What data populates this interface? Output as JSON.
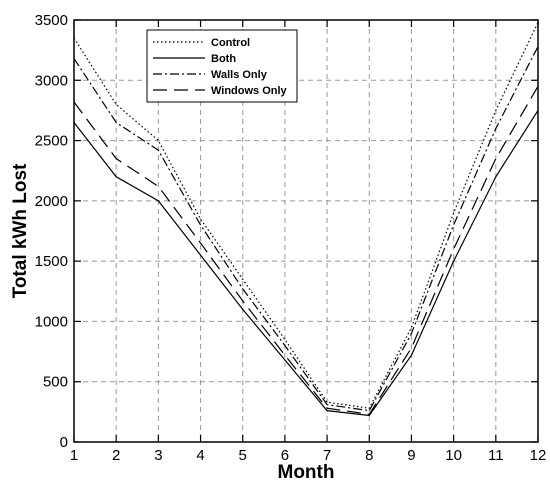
{
  "chart_data": {
    "type": "line",
    "title": "",
    "xlabel": "Month",
    "ylabel": "Total kWh Lost",
    "xlim": [
      1,
      12
    ],
    "ylim": [
      0,
      3500
    ],
    "x": [
      1,
      2,
      3,
      4,
      5,
      6,
      7,
      8,
      9,
      10,
      11,
      12
    ],
    "xticks": [
      "1",
      "2",
      "3",
      "4",
      "5",
      "6",
      "7",
      "8",
      "9",
      "10",
      "11",
      "12"
    ],
    "yticks": [
      "0",
      "500",
      "1000",
      "1500",
      "2000",
      "2500",
      "3000",
      "3500"
    ],
    "grid": true,
    "legend_position": "top-left",
    "series": [
      {
        "name": "Control",
        "dash": "dotted",
        "values": [
          3350,
          2800,
          2500,
          1850,
          1350,
          850,
          330,
          280,
          950,
          1900,
          2750,
          3480
        ]
      },
      {
        "name": "Both",
        "dash": "solid",
        "values": [
          2650,
          2200,
          2000,
          1550,
          1100,
          680,
          260,
          220,
          720,
          1500,
          2200,
          2750
        ]
      },
      {
        "name": "Walls Only",
        "dash": "dashdot",
        "values": [
          3180,
          2650,
          2420,
          1800,
          1270,
          800,
          310,
          260,
          900,
          1800,
          2600,
          3280
        ]
      },
      {
        "name": "Windows Only",
        "dash": "dashed",
        "values": [
          2820,
          2350,
          2120,
          1650,
          1170,
          720,
          280,
          230,
          780,
          1600,
          2350,
          2950
        ]
      }
    ]
  }
}
